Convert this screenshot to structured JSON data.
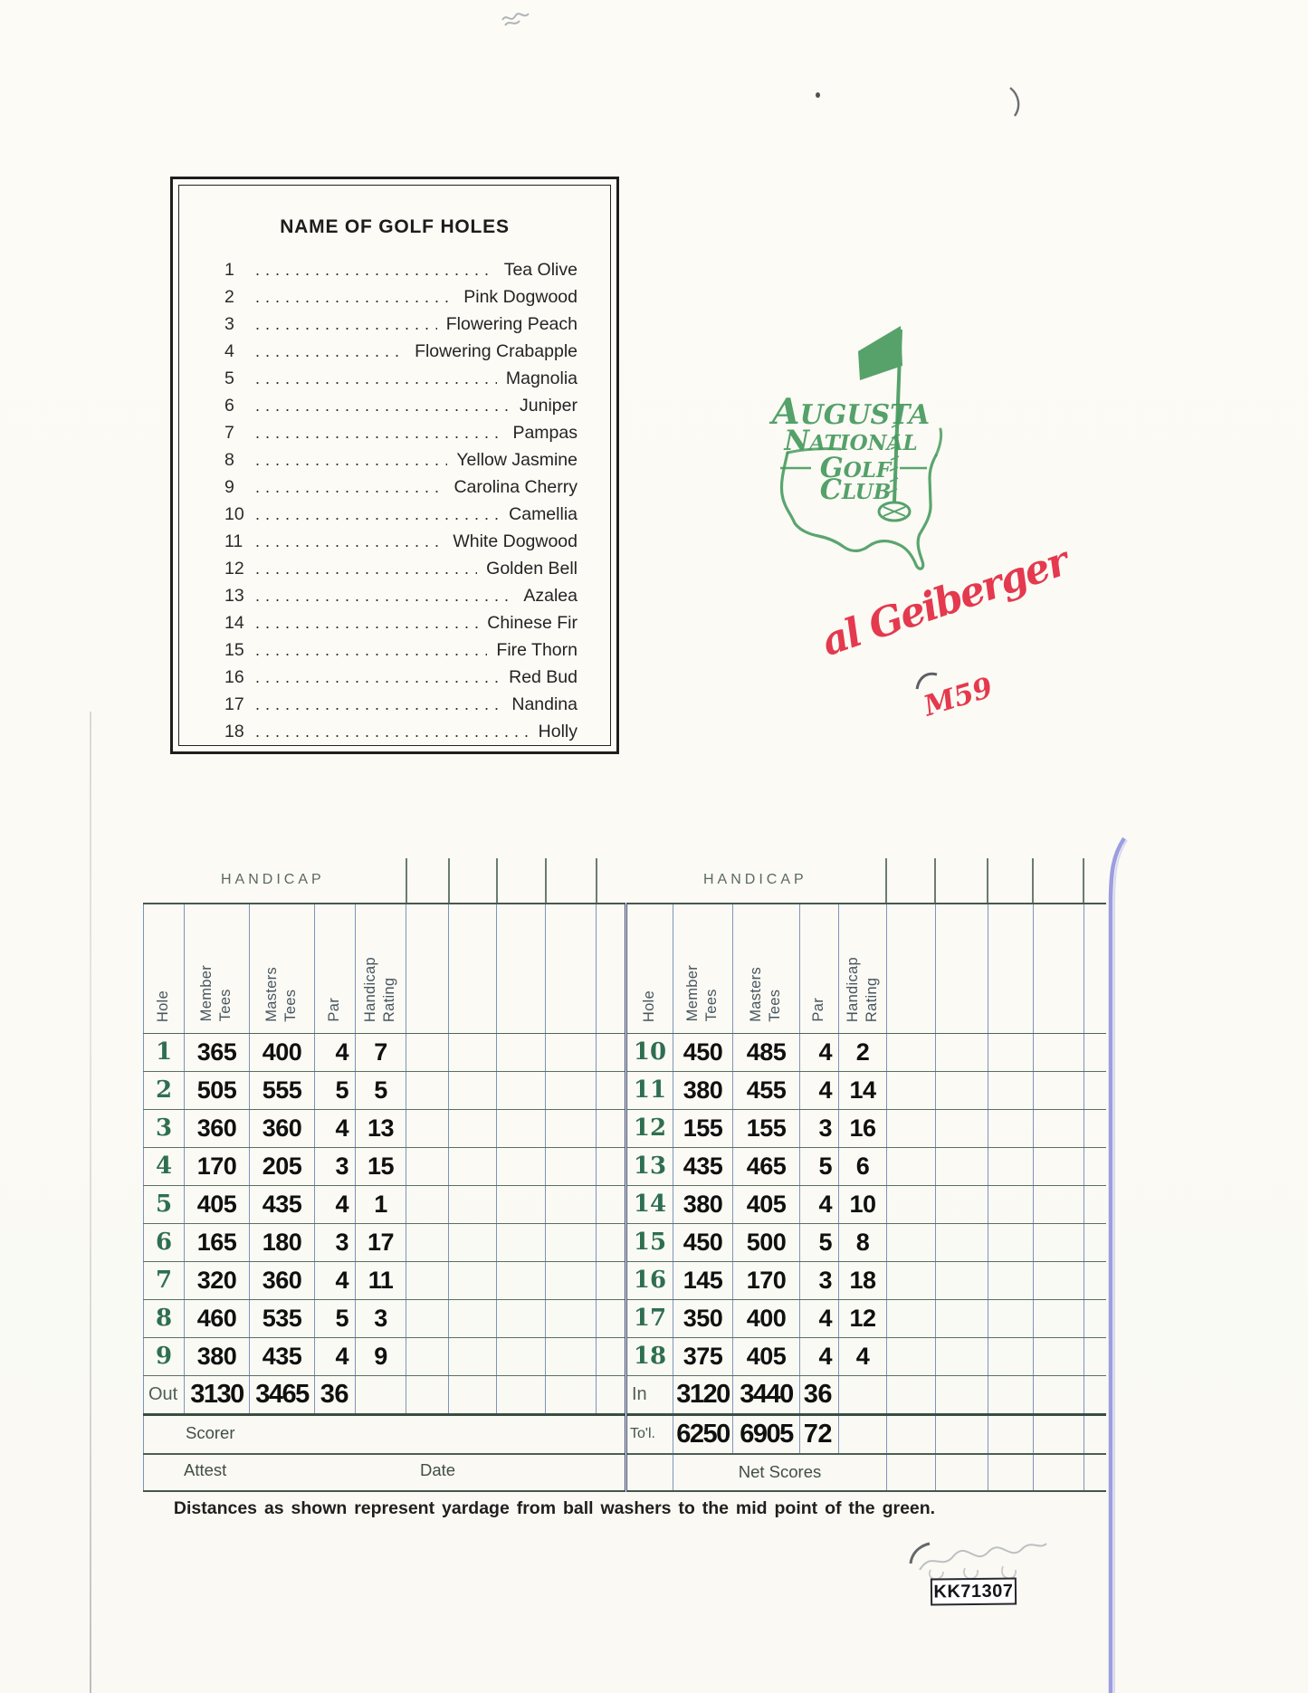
{
  "page": {
    "note": "Distances as shown represent yardage from ball washers to the mid point of the green.",
    "cert_number": "KK71307"
  },
  "holes_box": {
    "title": "NAME OF GOLF HOLES",
    "holes": [
      {
        "number": "1",
        "name": "Tea Olive"
      },
      {
        "number": "2",
        "name": "Pink Dogwood"
      },
      {
        "number": "3",
        "name": "Flowering Peach"
      },
      {
        "number": "4",
        "name": "Flowering Crabapple"
      },
      {
        "number": "5",
        "name": "Magnolia"
      },
      {
        "number": "6",
        "name": "Juniper"
      },
      {
        "number": "7",
        "name": "Pampas"
      },
      {
        "number": "8",
        "name": "Yellow Jasmine"
      },
      {
        "number": "9",
        "name": "Carolina Cherry"
      },
      {
        "number": "10",
        "name": "Camellia"
      },
      {
        "number": "11",
        "name": "White Dogwood"
      },
      {
        "number": "12",
        "name": "Golden Bell"
      },
      {
        "number": "13",
        "name": "Azalea"
      },
      {
        "number": "14",
        "name": "Chinese Fir"
      },
      {
        "number": "15",
        "name": "Fire Thorn"
      },
      {
        "number": "16",
        "name": "Red Bud"
      },
      {
        "number": "17",
        "name": "Nandina"
      },
      {
        "number": "18",
        "name": "Holly"
      }
    ]
  },
  "logo": {
    "lines": [
      "AUGUSTA",
      "NATIONAL",
      "GOLF",
      "CLUB"
    ],
    "color": "#489b5f"
  },
  "autograph": {
    "name": "al Geiberger",
    "inscription": "M59",
    "color": "#e4394e"
  },
  "scorecard": {
    "handicap_label": "HANDICAP",
    "columns": [
      "Hole",
      "Member\nTees",
      "Masters\nTees",
      "Par",
      "Handicap\nRating"
    ],
    "front": {
      "rows": [
        {
          "hole": "1",
          "member": "365",
          "masters": "400",
          "par": "4",
          "rating": "7"
        },
        {
          "hole": "2",
          "member": "505",
          "masters": "555",
          "par": "5",
          "rating": "5"
        },
        {
          "hole": "3",
          "member": "360",
          "masters": "360",
          "par": "4",
          "rating": "13"
        },
        {
          "hole": "4",
          "member": "170",
          "masters": "205",
          "par": "3",
          "rating": "15"
        },
        {
          "hole": "5",
          "member": "405",
          "masters": "435",
          "par": "4",
          "rating": "1"
        },
        {
          "hole": "6",
          "member": "165",
          "masters": "180",
          "par": "3",
          "rating": "17"
        },
        {
          "hole": "7",
          "member": "320",
          "masters": "360",
          "par": "4",
          "rating": "11"
        },
        {
          "hole": "8",
          "member": "460",
          "masters": "535",
          "par": "5",
          "rating": "3"
        },
        {
          "hole": "9",
          "member": "380",
          "masters": "435",
          "par": "4",
          "rating": "9"
        }
      ],
      "total": {
        "label": "Out",
        "member": "3130",
        "masters": "3465",
        "par": "36"
      }
    },
    "back": {
      "rows": [
        {
          "hole": "10",
          "member": "450",
          "masters": "485",
          "par": "4",
          "rating": "2"
        },
        {
          "hole": "11",
          "member": "380",
          "masters": "455",
          "par": "4",
          "rating": "14"
        },
        {
          "hole": "12",
          "member": "155",
          "masters": "155",
          "par": "3",
          "rating": "16"
        },
        {
          "hole": "13",
          "member": "435",
          "masters": "465",
          "par": "5",
          "rating": "6"
        },
        {
          "hole": "14",
          "member": "380",
          "masters": "405",
          "par": "4",
          "rating": "10"
        },
        {
          "hole": "15",
          "member": "450",
          "masters": "500",
          "par": "5",
          "rating": "8"
        },
        {
          "hole": "16",
          "member": "145",
          "masters": "170",
          "par": "3",
          "rating": "18"
        },
        {
          "hole": "17",
          "member": "350",
          "masters": "400",
          "par": "4",
          "rating": "12"
        },
        {
          "hole": "18",
          "member": "375",
          "masters": "405",
          "par": "4",
          "rating": "4"
        }
      ],
      "total": {
        "label": "In",
        "member": "3120",
        "masters": "3440",
        "par": "36"
      },
      "grand_total": {
        "label": "To'l.",
        "member": "6250",
        "masters": "6905",
        "par": "72"
      }
    },
    "footer": {
      "scorer": "Scorer",
      "attest": "Attest",
      "date": "Date",
      "net_scores": "Net Scores"
    }
  }
}
